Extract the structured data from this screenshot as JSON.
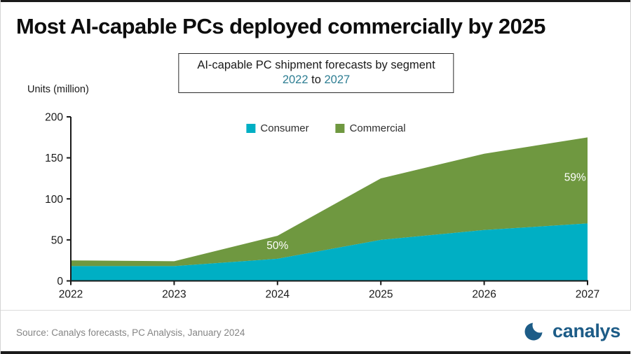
{
  "page": {
    "title": "Most AI-capable PCs deployed commercially by 2025",
    "subtitle_line1": "AI-capable PC shipment forecasts by segment",
    "subtitle_year_start": "2022",
    "subtitle_to": " to ",
    "subtitle_year_end": "2027",
    "units_label": "Units (million)",
    "source": "Source: Canalys forecasts, PC Analysis, January 2024",
    "logo_text": "canalys"
  },
  "colors": {
    "consumer": "#00AFC4",
    "commercial": "#6F9840",
    "teal_text": "#2E7E93",
    "logo_blue": "#1D5C87",
    "axis": "#1A1A1A",
    "annotation_text": "#FFFFFF"
  },
  "chart_data": {
    "type": "area",
    "stacked": true,
    "title": "AI-capable PC shipment forecasts by segment 2022 to 2027",
    "xlabel": "",
    "ylabel": "Units (million)",
    "x": [
      2022,
      2023,
      2024,
      2025,
      2026,
      2027
    ],
    "series": [
      {
        "name": "Consumer",
        "color": "#00AFC4",
        "values": [
          18,
          18,
          27,
          50,
          62,
          70
        ]
      },
      {
        "name": "Commercial",
        "color": "#6F9840",
        "values": [
          7,
          6,
          28,
          75,
          93,
          105
        ]
      }
    ],
    "totals": [
      25,
      24,
      55,
      125,
      155,
      175
    ],
    "annotations": [
      {
        "x": 2024,
        "y": 39,
        "text": "50%"
      },
      {
        "x": 2026.88,
        "y": 122,
        "text": "59%"
      }
    ],
    "ylim": [
      0,
      200
    ],
    "yticks": [
      0,
      50,
      100,
      150,
      200
    ],
    "xticks": [
      2022,
      2023,
      2024,
      2025,
      2026,
      2027
    ],
    "grid": false,
    "legend_position": "top-center"
  }
}
